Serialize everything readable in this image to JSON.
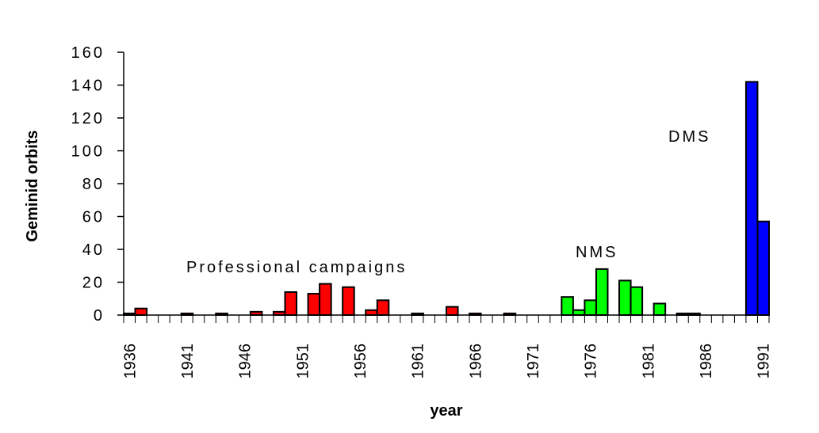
{
  "chart_data": {
    "type": "bar",
    "x_label": "year",
    "y_label": "Geminid orbits",
    "categories": [
      "1936",
      null,
      null,
      null,
      null,
      "1941",
      null,
      null,
      null,
      null,
      "1946",
      null,
      null,
      null,
      null,
      "1951",
      null,
      null,
      null,
      null,
      "1956",
      null,
      null,
      null,
      null,
      "1961",
      null,
      null,
      null,
      null,
      "1966",
      null,
      null,
      null,
      null,
      "1971",
      null,
      null,
      null,
      null,
      "1976",
      null,
      null,
      null,
      null,
      "1981",
      null,
      null,
      null,
      null,
      "1986",
      null,
      null,
      null,
      null,
      "1991"
    ],
    "values": [
      1,
      4,
      0,
      0,
      0,
      1,
      0,
      0,
      1,
      0,
      0,
      2,
      0,
      2,
      14,
      0,
      13,
      19,
      0,
      17,
      0,
      3,
      9,
      0,
      0,
      1,
      0,
      0,
      5,
      0,
      1,
      0,
      0,
      1,
      0,
      0,
      0,
      0,
      11,
      3,
      9,
      28,
      0,
      21,
      17,
      0,
      7,
      0,
      1,
      1,
      0,
      0,
      0,
      0,
      142,
      57
    ],
    "colors": [
      "#ff0000",
      "#ff0000",
      "#ff0000",
      "#ff0000",
      "#ff0000",
      "#ff0000",
      "#ff0000",
      "#ff0000",
      "#ff0000",
      "#ff0000",
      "#ff0000",
      "#ff0000",
      "#ff0000",
      "#ff0000",
      "#ff0000",
      "#ff0000",
      "#ff0000",
      "#ff0000",
      "#ff0000",
      "#ff0000",
      "#ff0000",
      "#ff0000",
      "#ff0000",
      "#ff0000",
      "#ff0000",
      "#ff0000",
      "#ff0000",
      "#ff0000",
      "#ff0000",
      "#ff0000",
      "#ff0000",
      "#ff0000",
      "#ff0000",
      "#ff0000",
      "#00ff00",
      "#00ff00",
      "#00ff00",
      "#00ff00",
      "#00ff00",
      "#00ff00",
      "#00ff00",
      "#00ff00",
      "#00ff00",
      "#00ff00",
      "#00ff00",
      "#00ff00",
      "#00ff00",
      "#00ff00",
      "#00ff00",
      "#00ff00",
      "#00ff00",
      "#00ff00",
      "#00ff00",
      "#00ff00",
      "#0000ff",
      "#0000ff"
    ],
    "ylim": [
      0,
      160
    ],
    "yticks": [
      0,
      20,
      40,
      60,
      80,
      100,
      120,
      140,
      160
    ],
    "annotations": [
      "Professional campaigns",
      "NMS",
      "DMS"
    ]
  }
}
